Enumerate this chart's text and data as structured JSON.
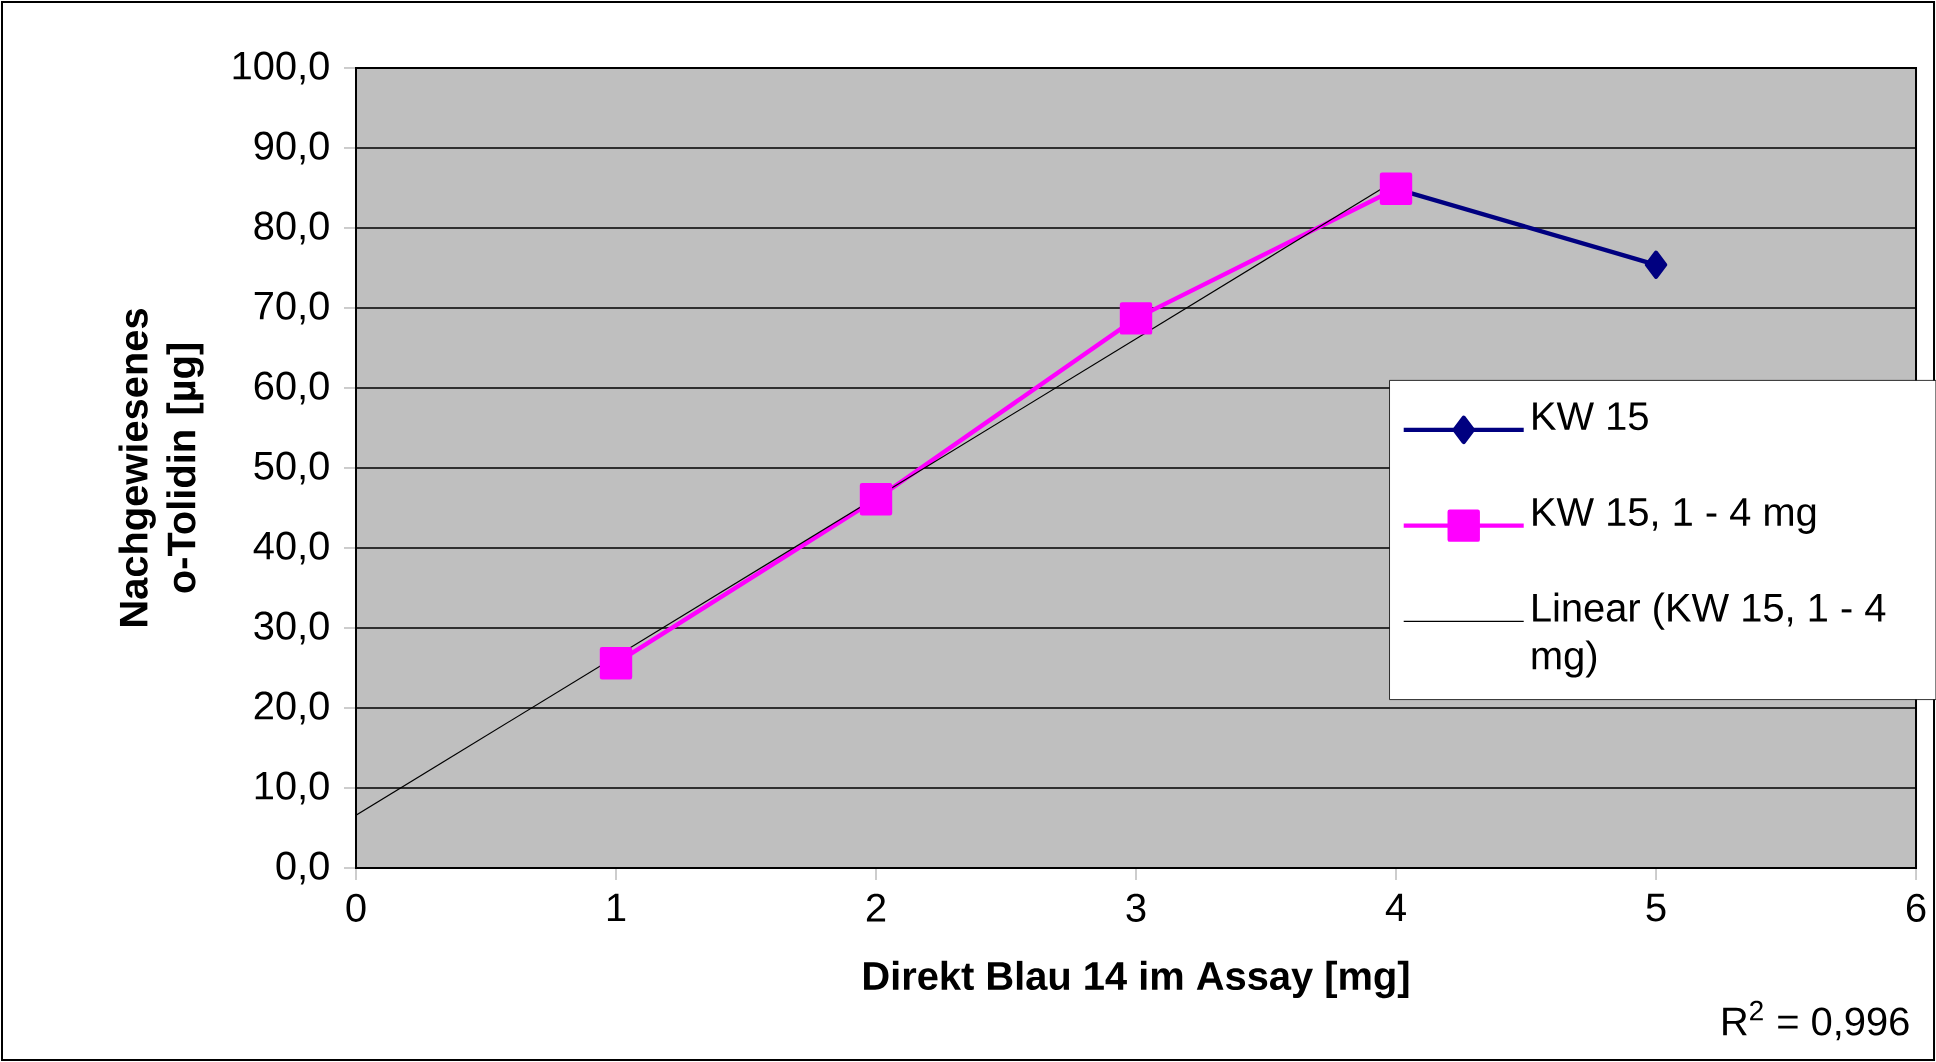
{
  "chart_data": {
    "type": "line",
    "xlabel": "Direkt Blau 14 im Assay [mg]",
    "ylabel": "Nachgewiesenes o-Tolidin [µg]",
    "xlim": [
      0,
      6
    ],
    "xticks": [
      0,
      1,
      2,
      3,
      4,
      5,
      6
    ],
    "ylim": [
      0,
      100
    ],
    "yticks": [
      {
        "value": 0,
        "label": "0,0"
      },
      {
        "value": 10,
        "label": "10,0"
      },
      {
        "value": 20,
        "label": "20,0"
      },
      {
        "value": 30,
        "label": "30,0"
      },
      {
        "value": 40,
        "label": "40,0"
      },
      {
        "value": 50,
        "label": "50,0"
      },
      {
        "value": 60,
        "label": "60,0"
      },
      {
        "value": 70,
        "label": "70,0"
      },
      {
        "value": 80,
        "label": "80,0"
      },
      {
        "value": 90,
        "label": "90,0"
      },
      {
        "value": 100,
        "label": "100,0"
      }
    ],
    "grid": "y",
    "legend": "right",
    "line_style": "solid",
    "series": [
      {
        "name": "KW 15",
        "color": "#000080",
        "marker": "diamond",
        "x": [
          4,
          5
        ],
        "values": [
          84.9,
          75.4
        ]
      },
      {
        "name": "KW 15, 1 - 4 mg",
        "color": "#ff00ff",
        "marker": "square",
        "x": [
          1,
          2,
          3,
          4
        ],
        "values": [
          25.6,
          46.1,
          68.7,
          84.9
        ]
      },
      {
        "name": "Linear (KW 15, 1 - 4 mg)",
        "color": "#000000",
        "marker": "none",
        "x": [
          0,
          4
        ],
        "values": [
          6.6,
          86.0
        ]
      }
    ],
    "annotations": [
      "R$^{2}$ = 0,996"
    ]
  }
}
